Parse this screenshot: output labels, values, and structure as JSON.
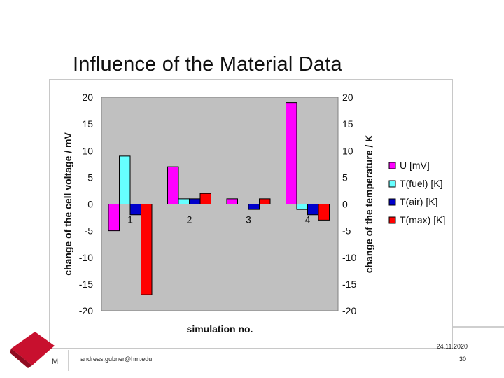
{
  "slide": {
    "title": "Influence of the Material Data",
    "footer_email": "andreas.gubner@hm.edu",
    "footer_date": "24.11.2020",
    "page_number": "30",
    "logo_letter": "M"
  },
  "colors": {
    "plot_bg": "#c0c0c0",
    "logo_red": "#c8102e"
  },
  "chart_data": {
    "type": "bar",
    "title": "",
    "xlabel": "simulation no.",
    "ylabel": "change of the cell voltage / mV",
    "ylabel_right": "change of the temperature / K",
    "categories": [
      "1",
      "2",
      "3",
      "4"
    ],
    "ylim": [
      -20,
      20
    ],
    "yticks": [
      20,
      15,
      10,
      5,
      0,
      -5,
      -10,
      -15,
      -20
    ],
    "yticks_right": [
      20,
      15,
      10,
      5,
      0,
      -5,
      -10,
      -15,
      -20
    ],
    "grid": false,
    "legend_position": "right",
    "series": [
      {
        "name": "U [mV]",
        "color": "#ff00ff",
        "values": [
          -5,
          7,
          1,
          19
        ]
      },
      {
        "name": "T(fuel) [K]",
        "color": "#66ffff",
        "values": [
          9,
          1,
          0,
          -1
        ]
      },
      {
        "name": "T(air) [K]",
        "color": "#0000cc",
        "values": [
          -2,
          1,
          -1,
          -2
        ]
      },
      {
        "name": "T(max) [K]",
        "color": "#ff0000",
        "values": [
          -17,
          2,
          1,
          -3
        ]
      }
    ]
  }
}
